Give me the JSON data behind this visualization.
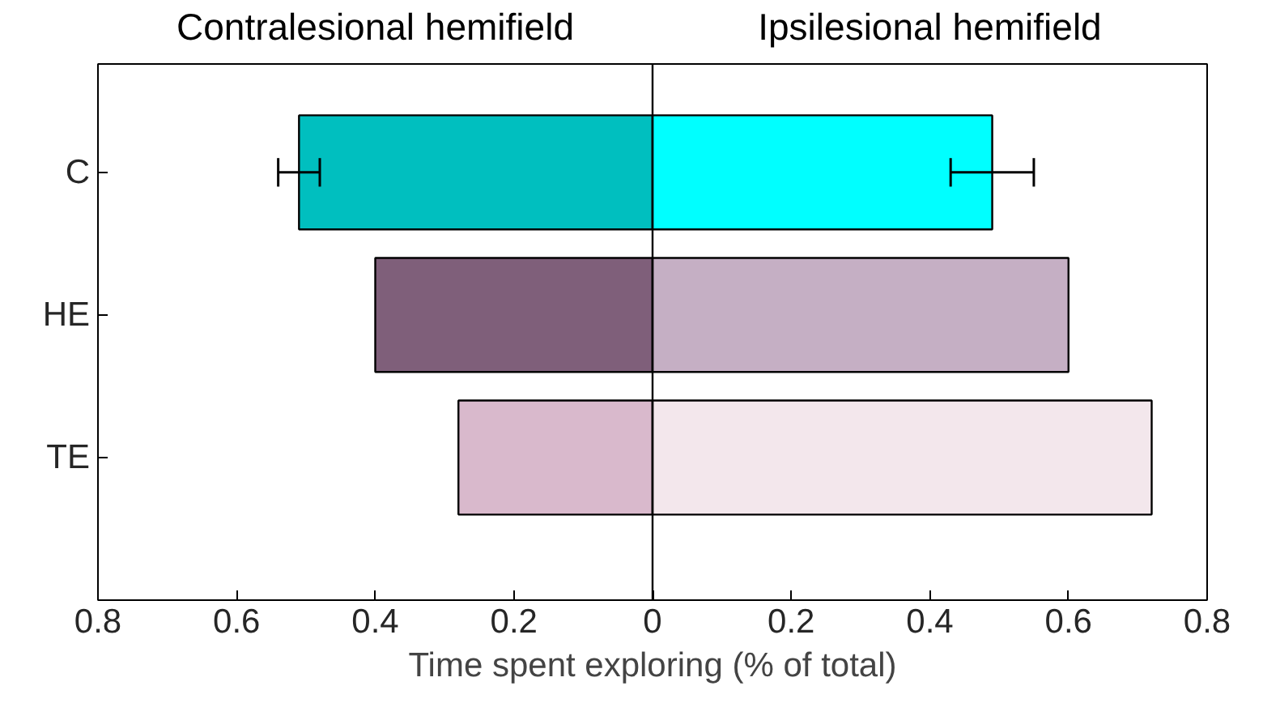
{
  "chart_data": {
    "type": "bar",
    "orientation": "horizontal",
    "categories": [
      "C",
      "HE",
      "TE"
    ],
    "xlabel": "Time spent exploring (% of total)",
    "series": [
      {
        "name": "Contralesional hemifield",
        "colors": [
          "#00bfbf",
          "#7f5f7a",
          "#d9b9cc"
        ],
        "values": [
          -0.51,
          -0.4,
          -0.28
        ],
        "errors": [
          0.03,
          null,
          null
        ]
      },
      {
        "name": "Ipsilesional hemifield",
        "colors": [
          "#00ffff",
          "#c5afc4",
          "#f3e7ec"
        ],
        "values": [
          0.49,
          0.6,
          0.72
        ],
        "errors": [
          0.06,
          null,
          null
        ]
      }
    ],
    "xlim": [
      -0.8,
      0.8
    ],
    "xticks": [
      {
        "value": -0.8,
        "label": "0.8"
      },
      {
        "value": -0.6,
        "label": "0.6"
      },
      {
        "value": -0.4,
        "label": "0.4"
      },
      {
        "value": -0.2,
        "label": "0.2"
      },
      0,
      0.2,
      0.4,
      0.6,
      0.8
    ],
    "ref_lines": [
      {
        "axis": "x",
        "value": 0,
        "color": "#000000"
      }
    ],
    "grid": false,
    "stacked": true
  }
}
